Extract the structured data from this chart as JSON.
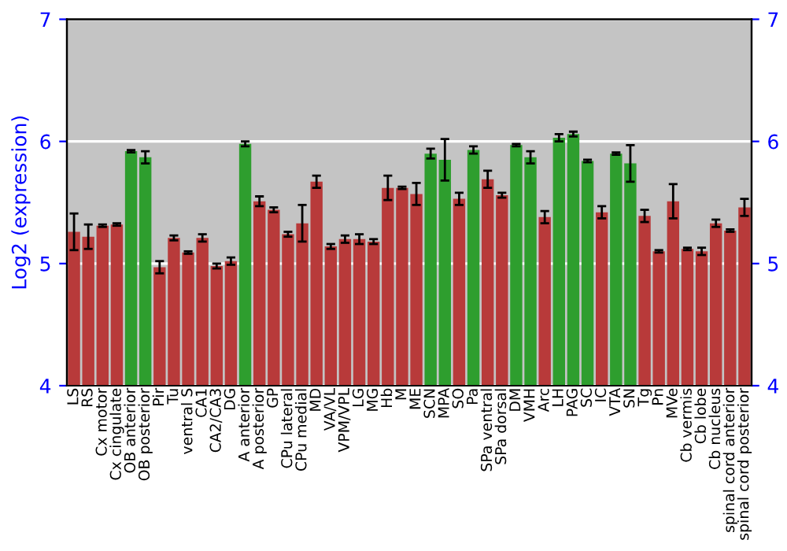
{
  "chart_data": {
    "type": "bar",
    "ylabel": "Log2 (expression)",
    "categories": [
      "LS",
      "RS",
      "Cx motor",
      "Cx cingulate",
      "OB anterior",
      "OB posterior",
      "Pir",
      "Tu",
      "ventral S",
      "CA1",
      "CA2/CA3",
      "DG",
      "A anterior",
      "A posterior",
      "GP",
      "CPu lateral",
      "CPu medial",
      "MD",
      "VA/VL",
      "VPM/VPL",
      "LG",
      "MG",
      "Hb",
      "M",
      "ME",
      "SCN",
      "MPA",
      "SO",
      "Pa",
      "SPa ventral",
      "SPa dorsal",
      "DM",
      "VMH",
      "Arc",
      "LH",
      "PAG",
      "SC",
      "IC",
      "VTA",
      "SN",
      "Tg",
      "Pn",
      "MVe",
      "Cb vermis",
      "Cb lobe",
      "Cb nucleus",
      "spinal cord anterior",
      "spinal cord posterior"
    ],
    "values": [
      5.26,
      5.22,
      5.31,
      5.32,
      5.92,
      5.87,
      4.97,
      5.21,
      5.09,
      5.21,
      4.98,
      5.02,
      5.98,
      5.51,
      5.44,
      5.24,
      5.33,
      5.67,
      5.14,
      5.2,
      5.2,
      5.18,
      5.62,
      5.62,
      5.57,
      5.9,
      5.85,
      5.53,
      5.93,
      5.69,
      5.56,
      5.97,
      5.87,
      5.38,
      6.03,
      6.06,
      5.84,
      5.42,
      5.9,
      5.82,
      5.39,
      5.1,
      5.51,
      5.12,
      5.1,
      5.33,
      5.27,
      5.46
    ],
    "errors": [
      0.15,
      0.1,
      0.01,
      0.01,
      0.01,
      0.05,
      0.05,
      0.02,
      0.01,
      0.03,
      0.02,
      0.03,
      0.02,
      0.04,
      0.02,
      0.02,
      0.15,
      0.05,
      0.02,
      0.03,
      0.04,
      0.02,
      0.1,
      0.01,
      0.09,
      0.04,
      0.17,
      0.05,
      0.03,
      0.07,
      0.02,
      0.01,
      0.05,
      0.05,
      0.03,
      0.02,
      0.01,
      0.05,
      0.01,
      0.15,
      0.05,
      0.01,
      0.14,
      0.01,
      0.03,
      0.03,
      0.01,
      0.07
    ],
    "colors": [
      "#b83a3a",
      "#b83a3a",
      "#b83a3a",
      "#b83a3a",
      "#2e9e2e",
      "#2e9e2e",
      "#b83a3a",
      "#b83a3a",
      "#b83a3a",
      "#b83a3a",
      "#b83a3a",
      "#b83a3a",
      "#2e9e2e",
      "#b83a3a",
      "#b83a3a",
      "#b83a3a",
      "#b83a3a",
      "#b83a3a",
      "#b83a3a",
      "#b83a3a",
      "#b83a3a",
      "#b83a3a",
      "#b83a3a",
      "#b83a3a",
      "#b83a3a",
      "#2e9e2e",
      "#2e9e2e",
      "#b83a3a",
      "#2e9e2e",
      "#b83a3a",
      "#b83a3a",
      "#2e9e2e",
      "#2e9e2e",
      "#b83a3a",
      "#2e9e2e",
      "#2e9e2e",
      "#2e9e2e",
      "#b83a3a",
      "#2e9e2e",
      "#2e9e2e",
      "#b83a3a",
      "#b83a3a",
      "#b83a3a",
      "#b83a3a",
      "#b83a3a",
      "#b83a3a",
      "#b83a3a",
      "#b83a3a"
    ],
    "ylim": [
      4,
      7
    ],
    "yticks": [
      4,
      5,
      6,
      7
    ],
    "y2lim": [
      4,
      7
    ],
    "y2ticks": [
      4,
      5,
      6,
      7
    ],
    "grid": "y"
  }
}
